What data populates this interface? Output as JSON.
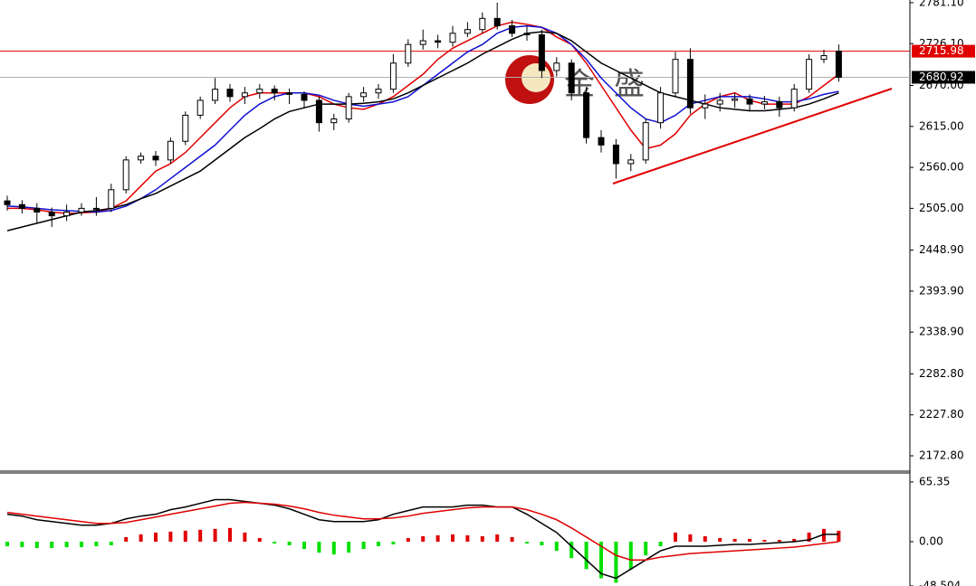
{
  "chart_data": {
    "type": "candlestick",
    "watermark": [
      "金",
      "盛"
    ],
    "ylim": [
      2152.2,
      2784.7
    ],
    "yticks": [
      {
        "value": 2781.1,
        "label": "2781.10"
      },
      {
        "value": 2726.1,
        "label": "2726.10"
      },
      {
        "value": 2670,
        "label": "2670.00"
      },
      {
        "value": 2615,
        "label": "2615.00"
      },
      {
        "value": 2560,
        "label": "2560.00"
      },
      {
        "value": 2505,
        "label": "2505.00"
      },
      {
        "value": 2448.9,
        "label": "2448.90"
      },
      {
        "value": 2393.9,
        "label": "2393.90"
      },
      {
        "value": 2338.9,
        "label": "2338.90"
      },
      {
        "value": 2282.8,
        "label": "2282.80"
      },
      {
        "value": 2227.8,
        "label": "2227.80"
      },
      {
        "value": 2172.8,
        "label": "2172.80"
      }
    ],
    "level_lines": [
      {
        "value": 2715.98,
        "color": "#e00000",
        "label_color": "#e00000"
      },
      {
        "value": 2680.92,
        "color": "#b0b0b0",
        "label_color": "#000000"
      }
    ],
    "candles": [
      [
        2515,
        2522,
        2502,
        2510
      ],
      [
        2510,
        2516,
        2498,
        2505
      ],
      [
        2505,
        2512,
        2485,
        2500
      ],
      [
        2500,
        2506,
        2480,
        2495
      ],
      [
        2495,
        2510,
        2488,
        2500
      ],
      [
        2500,
        2512,
        2495,
        2505
      ],
      [
        2505,
        2520,
        2495,
        2505
      ],
      [
        2505,
        2538,
        2500,
        2530
      ],
      [
        2530,
        2575,
        2525,
        2570
      ],
      [
        2570,
        2580,
        2565,
        2575
      ],
      [
        2575,
        2582,
        2562,
        2570
      ],
      [
        2570,
        2600,
        2565,
        2595
      ],
      [
        2595,
        2635,
        2590,
        2630
      ],
      [
        2630,
        2655,
        2625,
        2650
      ],
      [
        2650,
        2680,
        2645,
        2665
      ],
      [
        2665,
        2672,
        2648,
        2655
      ],
      [
        2655,
        2668,
        2645,
        2660
      ],
      [
        2660,
        2672,
        2652,
        2665
      ],
      [
        2665,
        2670,
        2650,
        2660
      ],
      [
        2660,
        2666,
        2645,
        2658
      ],
      [
        2658,
        2662,
        2640,
        2650
      ],
      [
        2650,
        2655,
        2608,
        2620
      ],
      [
        2620,
        2632,
        2610,
        2625
      ],
      [
        2625,
        2660,
        2620,
        2655
      ],
      [
        2655,
        2668,
        2648,
        2660
      ],
      [
        2660,
        2672,
        2652,
        2665
      ],
      [
        2665,
        2712,
        2660,
        2700
      ],
      [
        2700,
        2732,
        2695,
        2725
      ],
      [
        2725,
        2745,
        2718,
        2730
      ],
      [
        2730,
        2738,
        2720,
        2728
      ],
      [
        2728,
        2750,
        2722,
        2740
      ],
      [
        2740,
        2755,
        2735,
        2745
      ],
      [
        2745,
        2768,
        2740,
        2760
      ],
      [
        2760,
        2781,
        2745,
        2750
      ],
      [
        2750,
        2758,
        2735,
        2740
      ],
      [
        2740,
        2750,
        2730,
        2738
      ],
      [
        2738,
        2745,
        2680,
        2690
      ],
      [
        2690,
        2708,
        2682,
        2700
      ],
      [
        2700,
        2705,
        2650,
        2660
      ],
      [
        2660,
        2668,
        2592,
        2600
      ],
      [
        2600,
        2610,
        2580,
        2590
      ],
      [
        2590,
        2598,
        2545,
        2565
      ],
      [
        2565,
        2578,
        2555,
        2570
      ],
      [
        2570,
        2625,
        2565,
        2620
      ],
      [
        2620,
        2668,
        2612,
        2660
      ],
      [
        2660,
        2715,
        2655,
        2705
      ],
      [
        2705,
        2720,
        2632,
        2640
      ],
      [
        2640,
        2658,
        2625,
        2645
      ],
      [
        2645,
        2660,
        2635,
        2650
      ],
      [
        2650,
        2660,
        2640,
        2652
      ],
      [
        2652,
        2658,
        2635,
        2645
      ],
      [
        2645,
        2656,
        2638,
        2648
      ],
      [
        2648,
        2655,
        2628,
        2640
      ],
      [
        2640,
        2672,
        2635,
        2665
      ],
      [
        2665,
        2712,
        2660,
        2705
      ],
      [
        2705,
        2718,
        2700,
        2710
      ],
      [
        2715.98,
        2725,
        2675,
        2680.92
      ]
    ],
    "series": [
      {
        "color": "#e00000",
        "values": [
          2505,
          2505,
          2503,
          2500,
          2498,
          2499,
          2500,
          2505,
          2515,
          2535,
          2555,
          2565,
          2580,
          2600,
          2620,
          2640,
          2655,
          2660,
          2660,
          2660,
          2660,
          2655,
          2645,
          2640,
          2638,
          2645,
          2655,
          2670,
          2685,
          2705,
          2720,
          2730,
          2740,
          2750,
          2755,
          2752,
          2748,
          2735,
          2725,
          2700,
          2670,
          2640,
          2610,
          2585,
          2590,
          2605,
          2630,
          2645,
          2655,
          2660,
          2650,
          2645,
          2645,
          2645,
          2655,
          2670,
          2685
        ]
      },
      {
        "color": "#1010d0",
        "values": [
          2508,
          2507,
          2505,
          2503,
          2502,
          2501,
          2500,
          2502,
          2508,
          2518,
          2530,
          2545,
          2560,
          2575,
          2590,
          2610,
          2630,
          2645,
          2655,
          2660,
          2660,
          2657,
          2650,
          2645,
          2642,
          2645,
          2648,
          2655,
          2670,
          2685,
          2700,
          2715,
          2725,
          2740,
          2748,
          2750,
          2748,
          2740,
          2725,
          2705,
          2680,
          2660,
          2640,
          2625,
          2620,
          2630,
          2645,
          2650,
          2655,
          2655,
          2655,
          2652,
          2648,
          2648,
          2652,
          2658,
          2662
        ]
      },
      {
        "color": "#000000",
        "values": [
          2475,
          2480,
          2485,
          2490,
          2495,
          2500,
          2502,
          2505,
          2510,
          2518,
          2525,
          2535,
          2545,
          2555,
          2570,
          2585,
          2600,
          2612,
          2625,
          2635,
          2640,
          2645,
          2645,
          2645,
          2646,
          2648,
          2652,
          2660,
          2670,
          2680,
          2690,
          2700,
          2712,
          2722,
          2732,
          2740,
          2742,
          2740,
          2730,
          2715,
          2700,
          2690,
          2680,
          2670,
          2660,
          2655,
          2650,
          2645,
          2640,
          2638,
          2636,
          2636,
          2638,
          2640,
          2645,
          2652,
          2660
        ]
      }
    ],
    "macd": {
      "ylim": [
        -48.504,
        75.2
      ],
      "yticks": [
        65.35,
        {
          "value": 0,
          "label": "0.00"
        },
        -48.504
      ],
      "histogram": [
        -5,
        -6,
        -7,
        -7,
        -6,
        -6,
        -5,
        -4,
        5,
        8,
        10,
        11,
        12,
        13,
        14,
        15,
        10,
        4,
        -2,
        -4,
        -8,
        -12,
        -14,
        -12,
        -8,
        -5,
        -3,
        4,
        6,
        7,
        8,
        7,
        6,
        8,
        5,
        -2,
        -4,
        -10,
        -18,
        -30,
        -40,
        -45,
        -30,
        -15,
        -5,
        10,
        8,
        6,
        4,
        3,
        3,
        2,
        2,
        3,
        10,
        14,
        12
      ],
      "positive_color": "#e00000",
      "negative_color": "#00e000",
      "lines": [
        {
          "color": "#000000",
          "values": [
            30,
            28,
            24,
            22,
            20,
            18,
            18,
            20,
            25,
            28,
            30,
            35,
            38,
            42,
            46,
            46,
            44,
            42,
            40,
            36,
            30,
            24,
            22,
            22,
            22,
            24,
            30,
            34,
            38,
            38,
            38,
            40,
            40,
            38,
            38,
            30,
            20,
            10,
            -5,
            -20,
            -35,
            -40,
            -30,
            -20,
            -10,
            -5,
            -5,
            -5,
            -4,
            -3,
            -3,
            -2,
            -1,
            0,
            2,
            8,
            8
          ]
        },
        {
          "color": "#e00000",
          "values": [
            32,
            30,
            28,
            26,
            24,
            22,
            20,
            20,
            21,
            24,
            27,
            30,
            33,
            36,
            39,
            42,
            43,
            42,
            41,
            39,
            36,
            32,
            29,
            27,
            25,
            25,
            26,
            28,
            31,
            33,
            35,
            37,
            38,
            38,
            38,
            35,
            30,
            24,
            15,
            5,
            -5,
            -15,
            -20,
            -20,
            -17,
            -15,
            -13,
            -12,
            -11,
            -10,
            -9,
            -8,
            -7,
            -6,
            -4,
            -2,
            0
          ]
        }
      ]
    }
  }
}
